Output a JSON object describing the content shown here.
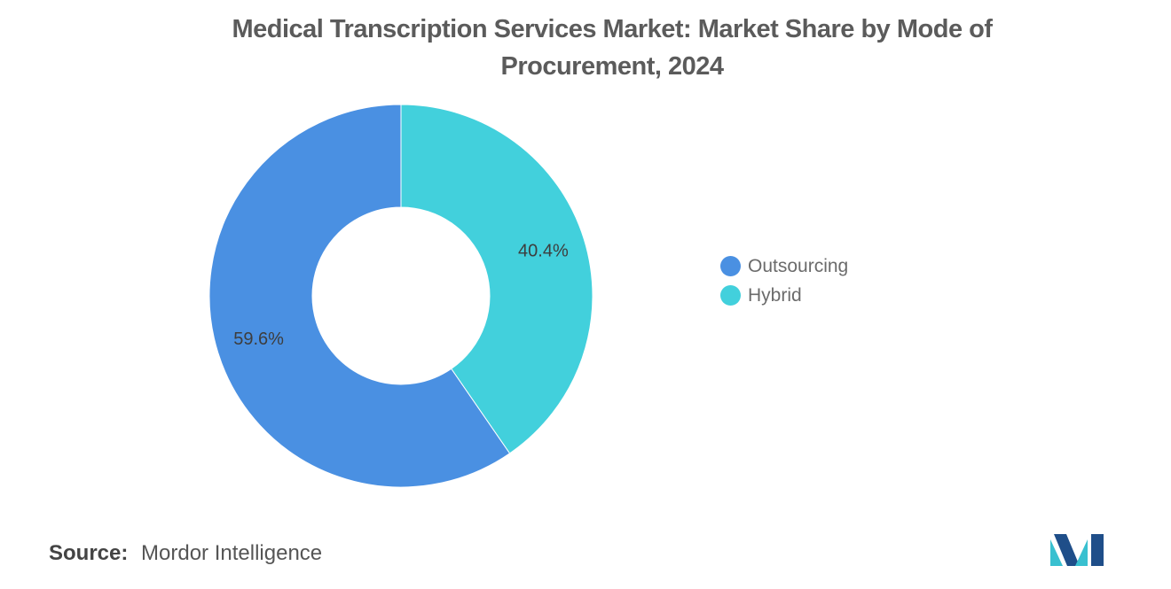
{
  "chart_data": {
    "type": "pie",
    "variant": "donut",
    "title": "Medical Transcription Services Market: Market Share by Mode of Procurement, 2024",
    "legend_position": "right",
    "slices": [
      {
        "label": "Hybrid",
        "value": 40.4,
        "display": "40.4%",
        "color": "#42d0dc"
      },
      {
        "label": "Outsourcing",
        "value": 59.6,
        "display": "59.6%",
        "color": "#4a90e2"
      }
    ],
    "legend": [
      {
        "label": "Outsourcing",
        "color": "#4a90e2"
      },
      {
        "label": "Hybrid",
        "color": "#42d0dc"
      }
    ]
  },
  "source": {
    "label": "Source:",
    "text": "Mordor Intelligence"
  },
  "logo": {
    "icon": "mordor-intelligence-logo-icon",
    "colors": [
      "#1f4e89",
      "#39c0d0"
    ]
  }
}
